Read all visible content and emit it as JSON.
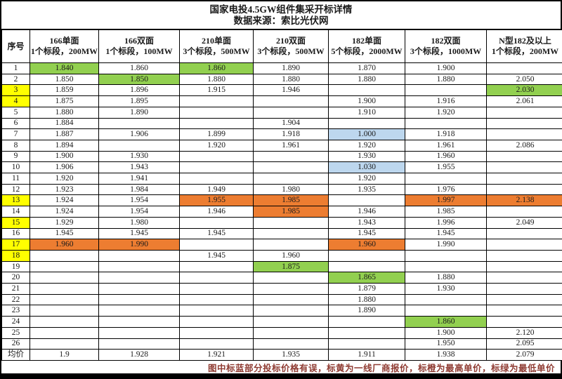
{
  "chart_data": {
    "type": "table",
    "title": "国家电投4.5GW组件集采开标详情",
    "subtitle": "数据来源：索比光伏网",
    "columns": [
      {
        "label": "序号",
        "sub": ""
      },
      {
        "label": "166单面",
        "sub": "1个标段，200MW"
      },
      {
        "label": "166双面",
        "sub": "1个标段，100MW"
      },
      {
        "label": "210单面",
        "sub": "3个标段，500MW"
      },
      {
        "label": "210双面",
        "sub": "3个标段，500MW"
      },
      {
        "label": "182单面",
        "sub": "5个标段，2000MW"
      },
      {
        "label": "182双面",
        "sub": "3个标段，1000MW"
      },
      {
        "label": "N型182及以上",
        "sub": "1个标段，200MW"
      }
    ],
    "highlight_colors": {
      "green": "#92D050",
      "yellow": "#FFFF00",
      "orange": "#ED7D31",
      "blue": "#BDD7EE"
    },
    "highlight_meaning": {
      "blue": "投标价格有误",
      "yellow": "一线厂商报价",
      "orange": "最高单价",
      "green": "最低单价"
    },
    "rows": [
      {
        "id": "1",
        "id_bg": "",
        "cells": [
          [
            "1.840",
            "green"
          ],
          [
            "1.860",
            ""
          ],
          [
            "1.860",
            "green"
          ],
          [
            "1.890",
            ""
          ],
          [
            "1.870",
            ""
          ],
          [
            "1.900",
            ""
          ],
          [
            "",
            ""
          ]
        ]
      },
      {
        "id": "2",
        "id_bg": "",
        "cells": [
          [
            "1.850",
            ""
          ],
          [
            "1.850",
            "green"
          ],
          [
            "1.880",
            ""
          ],
          [
            "1.880",
            ""
          ],
          [
            "1.880",
            ""
          ],
          [
            "1.880",
            ""
          ],
          [
            "2.050",
            ""
          ]
        ]
      },
      {
        "id": "3",
        "id_bg": "yellow",
        "cells": [
          [
            "1.859",
            ""
          ],
          [
            "1.896",
            ""
          ],
          [
            "1.915",
            ""
          ],
          [
            "1.946",
            ""
          ],
          [
            "",
            ""
          ],
          [
            "",
            ""
          ],
          [
            "2.030",
            "green"
          ]
        ]
      },
      {
        "id": "4",
        "id_bg": "yellow",
        "cells": [
          [
            "1.875",
            ""
          ],
          [
            "1.895",
            ""
          ],
          [
            "",
            ""
          ],
          [
            "",
            ""
          ],
          [
            "1.900",
            ""
          ],
          [
            "1.916",
            ""
          ],
          [
            "2.061",
            ""
          ]
        ]
      },
      {
        "id": "5",
        "id_bg": "",
        "cells": [
          [
            "1.880",
            ""
          ],
          [
            "1.890",
            ""
          ],
          [
            "",
            ""
          ],
          [
            "",
            ""
          ],
          [
            "1.910",
            ""
          ],
          [
            "1.920",
            ""
          ],
          [
            "",
            ""
          ]
        ]
      },
      {
        "id": "6",
        "id_bg": "",
        "cells": [
          [
            "1.884",
            ""
          ],
          [
            "",
            ""
          ],
          [
            "",
            ""
          ],
          [
            "1.904",
            ""
          ],
          [
            "",
            ""
          ],
          [
            "",
            ""
          ],
          [
            "",
            ""
          ]
        ]
      },
      {
        "id": "7",
        "id_bg": "",
        "cells": [
          [
            "1.887",
            ""
          ],
          [
            "1.906",
            ""
          ],
          [
            "1.899",
            ""
          ],
          [
            "1.918",
            ""
          ],
          [
            "1.000",
            "blue"
          ],
          [
            "1.918",
            ""
          ],
          [
            "",
            ""
          ]
        ]
      },
      {
        "id": "8",
        "id_bg": "",
        "cells": [
          [
            "1.894",
            ""
          ],
          [
            "",
            ""
          ],
          [
            "1.920",
            ""
          ],
          [
            "1.961",
            ""
          ],
          [
            "1.920",
            ""
          ],
          [
            "1.961",
            ""
          ],
          [
            "2.086",
            ""
          ]
        ]
      },
      {
        "id": "9",
        "id_bg": "",
        "cells": [
          [
            "1.900",
            ""
          ],
          [
            "1.930",
            ""
          ],
          [
            "",
            ""
          ],
          [
            "",
            ""
          ],
          [
            "1.930",
            ""
          ],
          [
            "1.960",
            ""
          ],
          [
            "",
            ""
          ]
        ]
      },
      {
        "id": "10",
        "id_bg": "",
        "cells": [
          [
            "1.906",
            ""
          ],
          [
            "1.943",
            ""
          ],
          [
            "",
            ""
          ],
          [
            "",
            ""
          ],
          [
            "1.030",
            "blue"
          ],
          [
            "1.955",
            ""
          ],
          [
            "",
            ""
          ]
        ]
      },
      {
        "id": "11",
        "id_bg": "",
        "cells": [
          [
            "1.920",
            ""
          ],
          [
            "1.941",
            ""
          ],
          [
            "",
            ""
          ],
          [
            "",
            ""
          ],
          [
            "1.920",
            ""
          ],
          [
            "",
            ""
          ],
          [
            "",
            ""
          ]
        ]
      },
      {
        "id": "12",
        "id_bg": "",
        "cells": [
          [
            "1.923",
            ""
          ],
          [
            "1.984",
            ""
          ],
          [
            "1.949",
            ""
          ],
          [
            "1.980",
            ""
          ],
          [
            "1.935",
            ""
          ],
          [
            "1.976",
            ""
          ],
          [
            "",
            ""
          ]
        ]
      },
      {
        "id": "13",
        "id_bg": "yellow",
        "cells": [
          [
            "1.924",
            ""
          ],
          [
            "1.954",
            ""
          ],
          [
            "1.955",
            "orange"
          ],
          [
            "1.985",
            "orange"
          ],
          [
            "",
            ""
          ],
          [
            "1.997",
            "orange"
          ],
          [
            "2.138",
            "orange"
          ]
        ]
      },
      {
        "id": "14",
        "id_bg": "",
        "cells": [
          [
            "1.924",
            ""
          ],
          [
            "1.954",
            ""
          ],
          [
            "1.946",
            ""
          ],
          [
            "1.985",
            "orange"
          ],
          [
            "1.946",
            ""
          ],
          [
            "1.985",
            ""
          ],
          [
            "",
            ""
          ]
        ]
      },
      {
        "id": "15",
        "id_bg": "yellow",
        "cells": [
          [
            "1.929",
            ""
          ],
          [
            "1.980",
            ""
          ],
          [
            "",
            ""
          ],
          [
            "",
            ""
          ],
          [
            "1.943",
            ""
          ],
          [
            "1.996",
            ""
          ],
          [
            "2.049",
            ""
          ]
        ]
      },
      {
        "id": "16",
        "id_bg": "",
        "cells": [
          [
            "1.945",
            ""
          ],
          [
            "1.945",
            ""
          ],
          [
            "1.945",
            ""
          ],
          [
            "",
            ""
          ],
          [
            "1.945",
            ""
          ],
          [
            "1.945",
            ""
          ],
          [
            "",
            ""
          ]
        ]
      },
      {
        "id": "17",
        "id_bg": "yellow",
        "cells": [
          [
            "1.960",
            "orange"
          ],
          [
            "1.990",
            "orange"
          ],
          [
            "",
            ""
          ],
          [
            "",
            ""
          ],
          [
            "1.960",
            "orange"
          ],
          [
            "1.990",
            ""
          ],
          [
            "",
            ""
          ]
        ]
      },
      {
        "id": "18",
        "id_bg": "yellow",
        "cells": [
          [
            "",
            ""
          ],
          [
            "",
            ""
          ],
          [
            "1.945",
            ""
          ],
          [
            "1.960",
            ""
          ],
          [
            "",
            ""
          ],
          [
            "",
            ""
          ],
          [
            "",
            ""
          ]
        ]
      },
      {
        "id": "19",
        "id_bg": "",
        "cells": [
          [
            "",
            ""
          ],
          [
            "",
            ""
          ],
          [
            "",
            ""
          ],
          [
            "1.875",
            "green"
          ],
          [
            "",
            ""
          ],
          [
            "",
            ""
          ],
          [
            "",
            ""
          ]
        ]
      },
      {
        "id": "20",
        "id_bg": "",
        "cells": [
          [
            "",
            ""
          ],
          [
            "",
            ""
          ],
          [
            "",
            ""
          ],
          [
            "",
            ""
          ],
          [
            "1.865",
            "green"
          ],
          [
            "1.880",
            ""
          ],
          [
            "",
            ""
          ]
        ]
      },
      {
        "id": "21",
        "id_bg": "",
        "cells": [
          [
            "",
            ""
          ],
          [
            "",
            ""
          ],
          [
            "",
            ""
          ],
          [
            "",
            ""
          ],
          [
            "1.879",
            ""
          ],
          [
            "1.930",
            ""
          ],
          [
            "",
            ""
          ]
        ]
      },
      {
        "id": "22",
        "id_bg": "",
        "cells": [
          [
            "",
            ""
          ],
          [
            "",
            ""
          ],
          [
            "",
            ""
          ],
          [
            "",
            ""
          ],
          [
            "1.880",
            ""
          ],
          [
            "",
            ""
          ],
          [
            "",
            ""
          ]
        ]
      },
      {
        "id": "23",
        "id_bg": "",
        "cells": [
          [
            "",
            ""
          ],
          [
            "",
            ""
          ],
          [
            "",
            ""
          ],
          [
            "",
            ""
          ],
          [
            "1.890",
            ""
          ],
          [
            "",
            ""
          ],
          [
            "",
            ""
          ]
        ]
      },
      {
        "id": "24",
        "id_bg": "",
        "cells": [
          [
            "",
            ""
          ],
          [
            "",
            ""
          ],
          [
            "",
            ""
          ],
          [
            "",
            ""
          ],
          [
            "",
            ""
          ],
          [
            "1.860",
            "green"
          ],
          [
            "",
            ""
          ]
        ]
      },
      {
        "id": "25",
        "id_bg": "",
        "cells": [
          [
            "",
            ""
          ],
          [
            "",
            ""
          ],
          [
            "",
            ""
          ],
          [
            "",
            ""
          ],
          [
            "",
            ""
          ],
          [
            "1.900",
            ""
          ],
          [
            "2.120",
            ""
          ]
        ]
      },
      {
        "id": "26",
        "id_bg": "",
        "cells": [
          [
            "",
            ""
          ],
          [
            "",
            ""
          ],
          [
            "",
            ""
          ],
          [
            "",
            ""
          ],
          [
            "",
            ""
          ],
          [
            "1.950",
            ""
          ],
          [
            "2.095",
            ""
          ]
        ]
      },
      {
        "id": "均价",
        "id_bg": "",
        "cells": [
          [
            "1.9",
            ""
          ],
          [
            "1.928",
            ""
          ],
          [
            "1.921",
            ""
          ],
          [
            "1.935",
            ""
          ],
          [
            "1.911",
            ""
          ],
          [
            "1.938",
            ""
          ],
          [
            "2.079",
            ""
          ]
        ]
      }
    ],
    "footer_note": "图中标蓝部分投标价格有误，标黄为一线厂商报价，标橙为最高单价，标绿为最低单价",
    "note_color": "#8F3B32"
  }
}
